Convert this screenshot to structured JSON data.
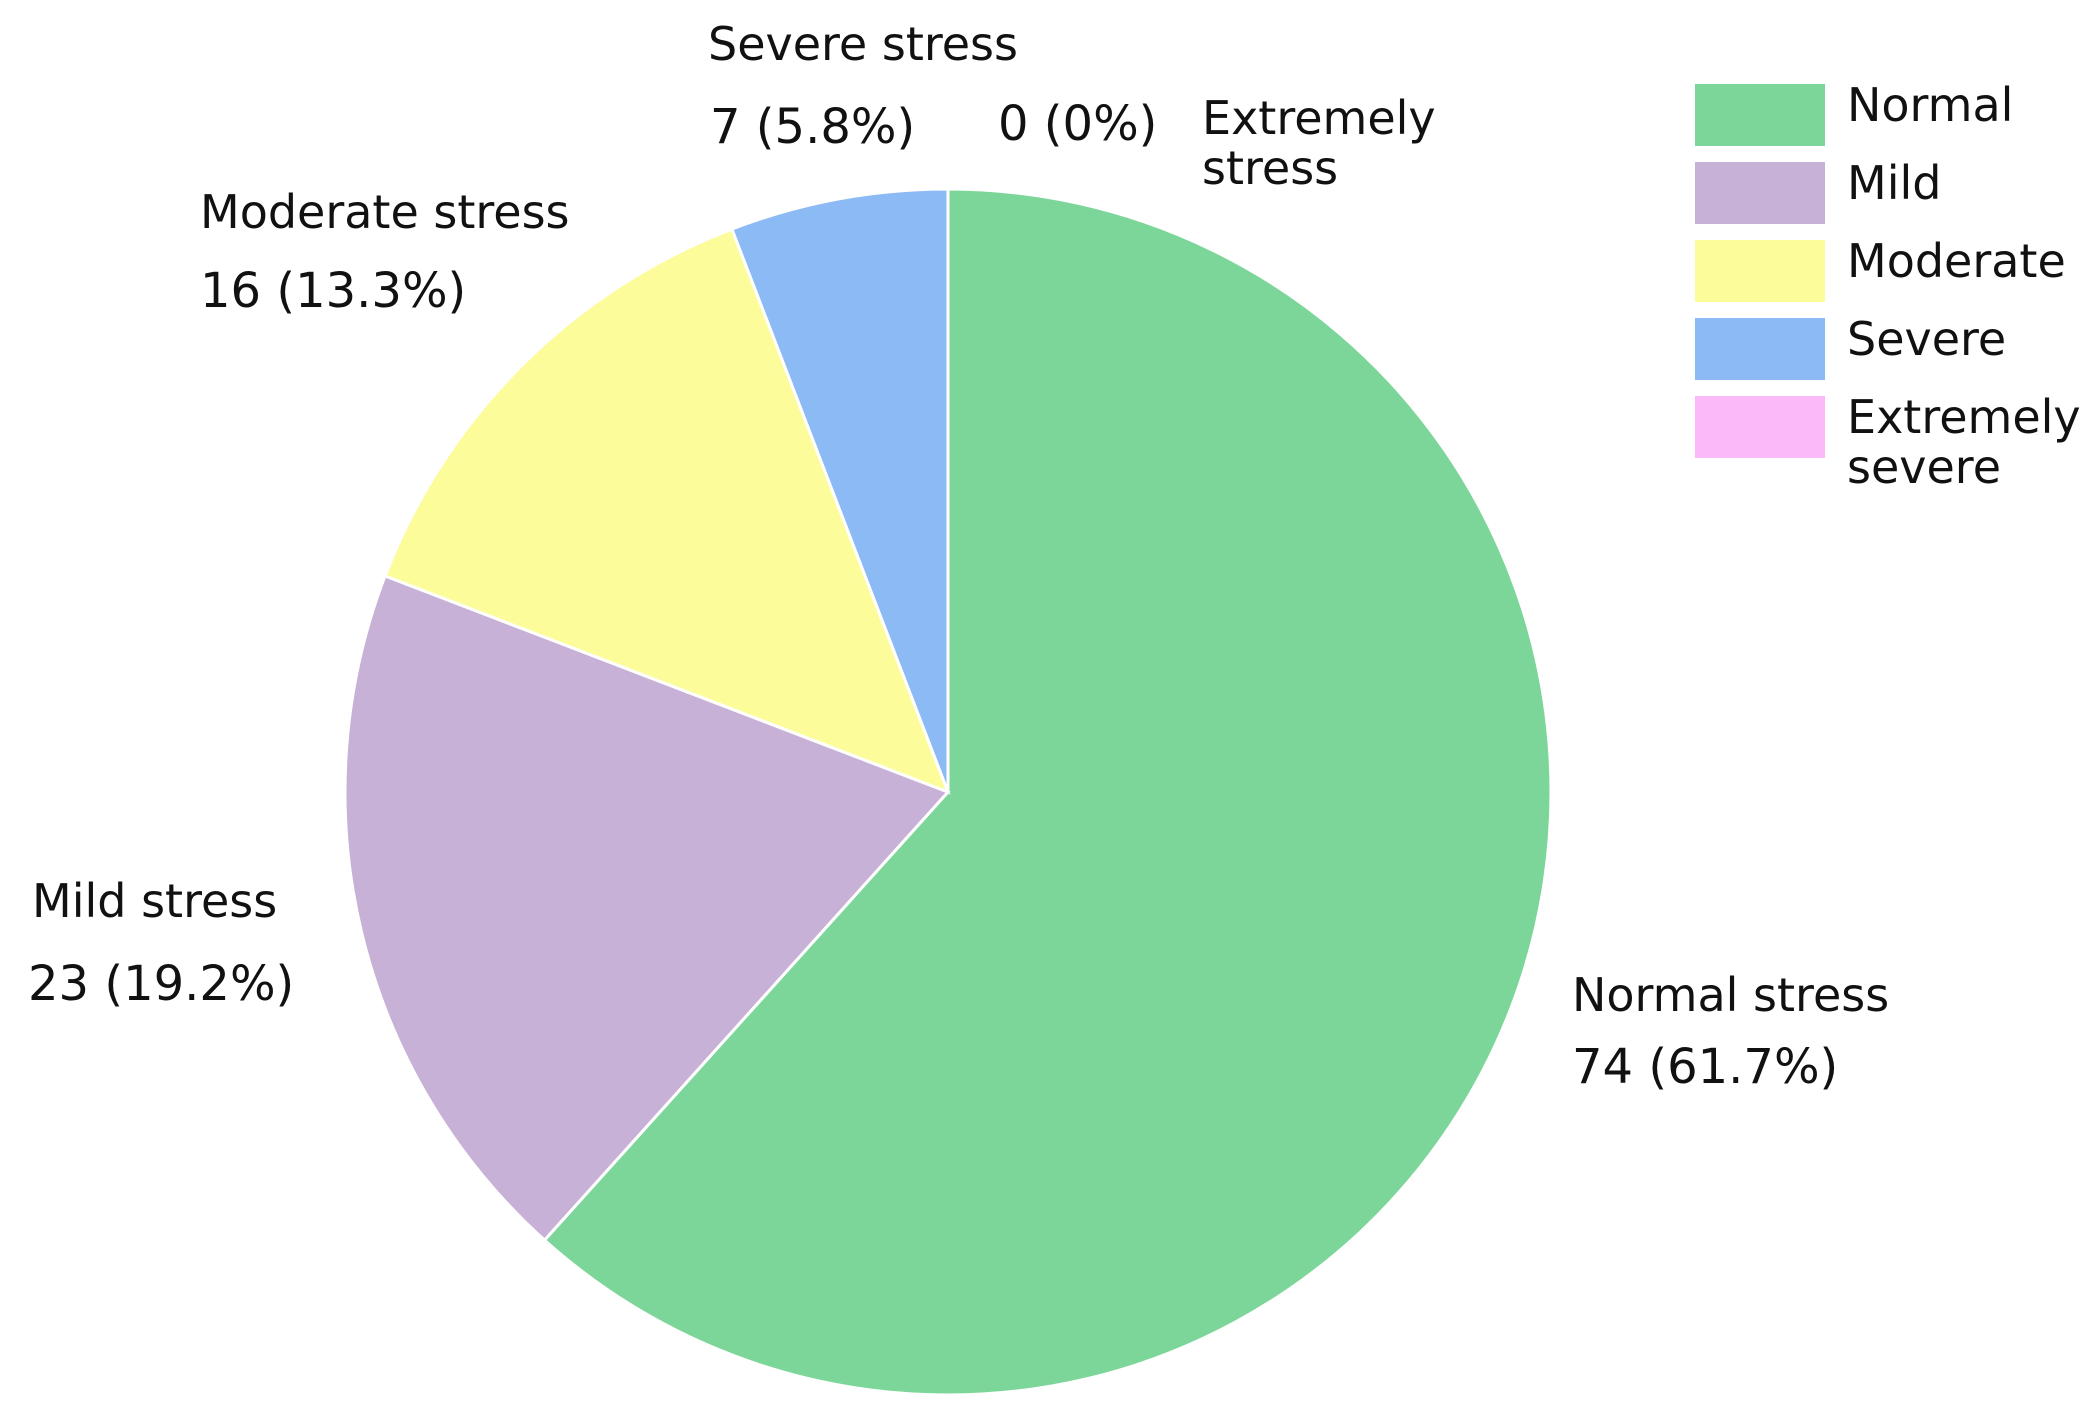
{
  "chart_data": {
    "type": "pie",
    "title": "",
    "slices": [
      {
        "label": "Normal stress",
        "count": 74,
        "percent": 61.7,
        "value_text": "74 (61.7%)",
        "color": "#7dd699"
      },
      {
        "label": "Mild stress",
        "count": 23,
        "percent": 19.2,
        "value_text": "23 (19.2%)",
        "color": "#c8b1d6"
      },
      {
        "label": "Moderate stress",
        "count": 16,
        "percent": 13.3,
        "value_text": "16 (13.3%)",
        "color": "#fdfc9a"
      },
      {
        "label": "Severe stress",
        "count": 7,
        "percent": 5.8,
        "value_text": "7 (5.8%)",
        "color": "#8bbaf4"
      },
      {
        "label": "Extremely stress",
        "count": 0,
        "percent": 0,
        "value_text": "0 (0%)",
        "color": "#fcb9f9"
      }
    ],
    "legend": {
      "position": "top-right",
      "items": [
        {
          "label": "Normal",
          "color": "#7dd699"
        },
        {
          "label": "Mild",
          "color": "#c8b1d6"
        },
        {
          "label": "Moderate",
          "color": "#fdfc9a"
        },
        {
          "label": "Severe",
          "color": "#8bbaf4"
        },
        {
          "label": "Extremely severe",
          "color": "#fcb9f9"
        }
      ]
    }
  }
}
